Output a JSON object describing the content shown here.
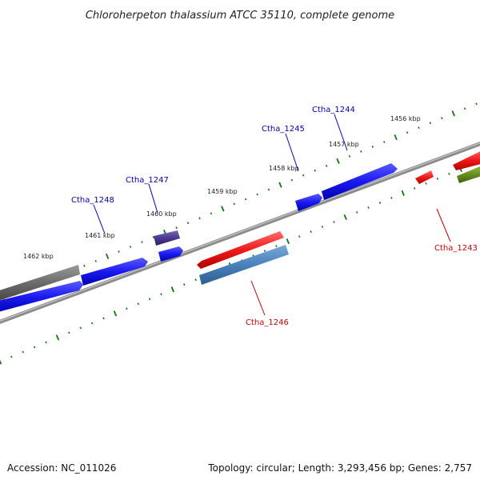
{
  "title": "Chloroherpeton thalassium ATCC 35110, complete genome",
  "footer": {
    "accession": "Accession: NC_011026",
    "summary": "Topology: circular; Length: 3,293,456 bp; Genes: 2,757"
  },
  "scale": {
    "unit": "kbp",
    "tick_labels": [
      "1456 kbp",
      "1457 kbp",
      "1459 kbp",
      "1460 kbp",
      "1461 kbp",
      "1462 kbp",
      "1458 kbp"
    ]
  },
  "colors": {
    "forward_gene": "#1010ee",
    "reverse_gene": "#ee1010",
    "label_forward": "#0000aa",
    "label_reverse": "#cc0000",
    "tick": "#117711",
    "backbone": "#888888"
  },
  "genes": [
    {
      "id": "g-1243",
      "label": "Ctha_1243",
      "strand": "reverse"
    },
    {
      "id": "g-1244",
      "label": "Ctha_1244",
      "strand": "forward"
    },
    {
      "id": "g-1245",
      "label": "Ctha_1245",
      "strand": "forward"
    },
    {
      "id": "g-1246",
      "label": "Ctha_1246",
      "strand": "reverse"
    },
    {
      "id": "g-1247",
      "label": "Ctha_1247",
      "strand": "forward"
    },
    {
      "id": "g-1248",
      "label": "Ctha_1248",
      "strand": "forward"
    }
  ]
}
